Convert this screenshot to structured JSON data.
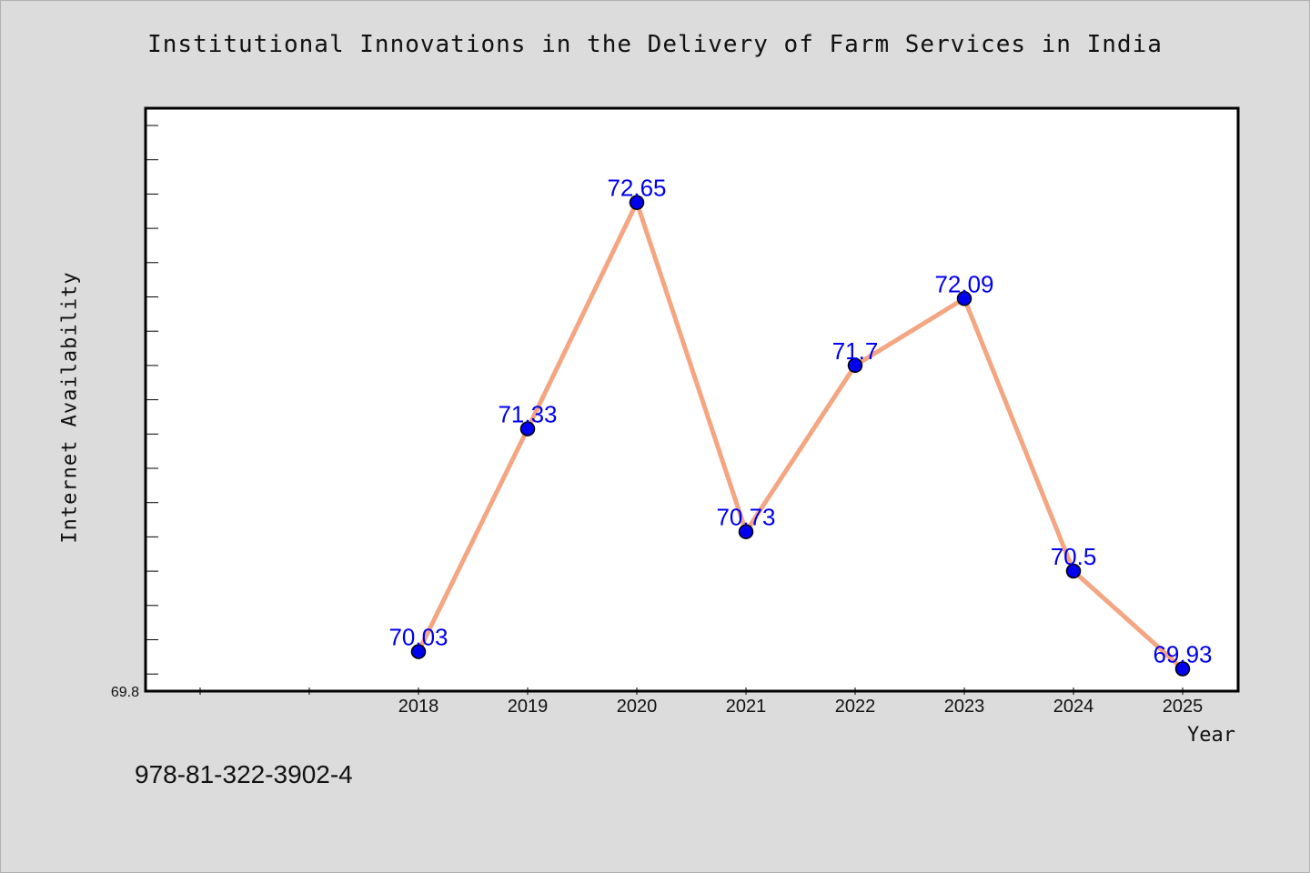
{
  "chart_data": {
    "type": "line",
    "title": "Institutional Innovations in the Delivery of Farm Services in India",
    "xlabel": "Year",
    "ylabel": "Internet Availability",
    "categories": [
      "2018",
      "2019",
      "2020",
      "2021",
      "2022",
      "2023",
      "2024",
      "2025"
    ],
    "series": [
      {
        "values": [
          70.03,
          71.33,
          72.65,
          70.73,
          71.7,
          72.09,
          70.5,
          69.93
        ],
        "labels": [
          "70.03",
          "71.33",
          "72.65",
          "70.73",
          "71.7",
          "72.09",
          "70.5",
          "69.93"
        ]
      }
    ],
    "ylim": [
      69.8,
      73.2
    ],
    "y_tick_labels": [
      "69.8"
    ],
    "grid": false,
    "colors": {
      "line": "#f4a582",
      "marker": "#0000ee",
      "data_label": "#0000ee",
      "plot_background": "#ffffff",
      "page_background": "#dcdcdc"
    }
  },
  "footer": {
    "code": "978-81-322-3902-4"
  }
}
